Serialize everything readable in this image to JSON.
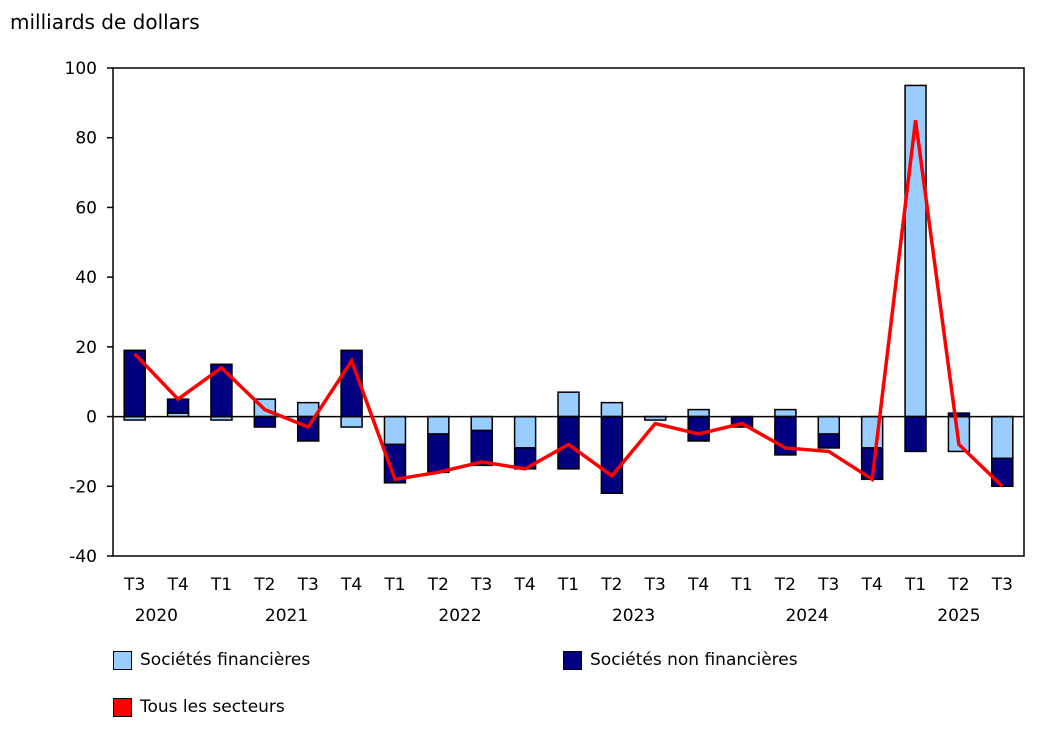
{
  "chart_data": {
    "type": "bar",
    "stacked": true,
    "ylabel": "milliards de dollars",
    "ylim": [
      -40,
      100
    ],
    "yticks": [
      -40,
      -20,
      0,
      20,
      40,
      60,
      80,
      100
    ],
    "grid": false,
    "legend_position": "bottom",
    "categories": [
      "T3",
      "T4",
      "T1",
      "T2",
      "T3",
      "T4",
      "T1",
      "T2",
      "T3",
      "T4",
      "T1",
      "T2",
      "T3",
      "T4",
      "T1",
      "T2",
      "T3",
      "T4",
      "T1",
      "T2",
      "T3"
    ],
    "years": [
      {
        "label": "2020",
        "from": 0,
        "to": 1
      },
      {
        "label": "2021",
        "from": 2,
        "to": 5
      },
      {
        "label": "2022",
        "from": 6,
        "to": 9
      },
      {
        "label": "2023",
        "from": 10,
        "to": 13
      },
      {
        "label": "2024",
        "from": 14,
        "to": 17
      },
      {
        "label": "2025",
        "from": 18,
        "to": 20
      }
    ],
    "series": [
      {
        "name": "Sociétés financières",
        "kind": "bar",
        "color": "#99ccff",
        "values": [
          -1,
          1,
          -1,
          5,
          4,
          -3,
          -8,
          -5,
          -4,
          -9,
          7,
          4,
          -1,
          2,
          0,
          2,
          -5,
          -9,
          95,
          -10,
          -12
        ]
      },
      {
        "name": "Sociétés non financières",
        "kind": "bar",
        "color": "#000080",
        "values": [
          19,
          4,
          15,
          -3,
          -7,
          19,
          -11,
          -11,
          -10,
          -6,
          -15,
          -22,
          0,
          -7,
          -3,
          -11,
          -4,
          -9,
          -10,
          1,
          -8
        ]
      },
      {
        "name": "Tous les secteurs",
        "kind": "line",
        "color": "#ff0000",
        "values": [
          18,
          5,
          14,
          2,
          -3,
          16,
          -18,
          -16,
          -13,
          -15,
          -8,
          -17,
          -2,
          -5,
          -2,
          -9,
          -10,
          -18,
          85,
          -8,
          -20
        ]
      }
    ]
  }
}
